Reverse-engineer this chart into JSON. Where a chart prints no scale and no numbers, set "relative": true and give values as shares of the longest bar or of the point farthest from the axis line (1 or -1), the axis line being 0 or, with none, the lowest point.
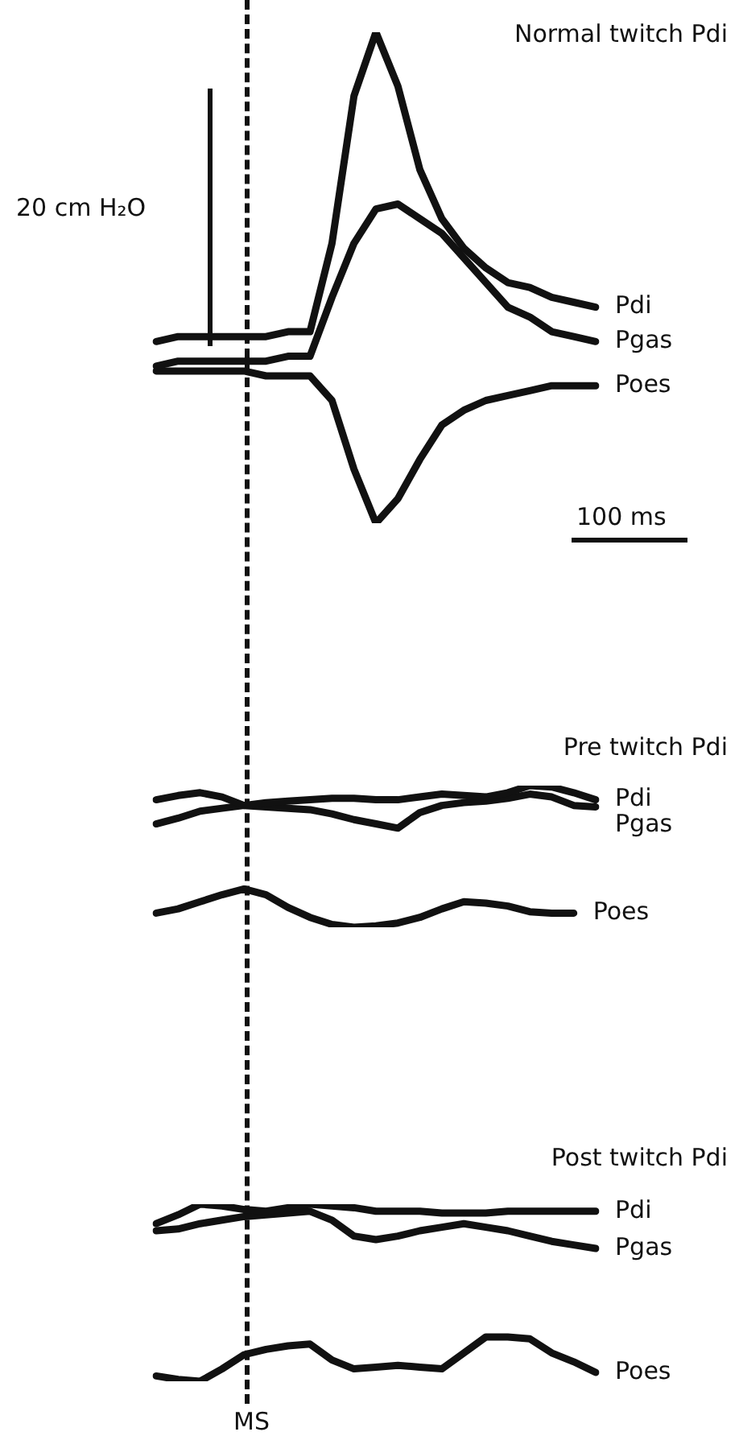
{
  "chart_data": [
    {
      "type": "line",
      "title": "Normal twitch Pdi",
      "relative": true,
      "legend": false,
      "marker": "none",
      "line_style": "solid",
      "annotations": [
        "20 cm H₂O",
        "100 ms"
      ],
      "categories": [
        null,
        null,
        null,
        null,
        null,
        null,
        null,
        null,
        null,
        null,
        null,
        null,
        null,
        null,
        null,
        null,
        null,
        null,
        null,
        null,
        null
      ],
      "series": [
        {
          "name": "Pdi",
          "color": "#111111",
          "values": [
            0.37,
            0.38,
            0.38,
            0.38,
            0.38,
            0.38,
            0.39,
            0.39,
            0.57,
            0.87,
            1,
            0.89,
            0.72,
            0.62,
            0.56,
            0.52,
            0.49,
            0.48,
            0.46,
            0.45,
            0.44
          ]
        },
        {
          "name": "Pgas",
          "color": "#111111",
          "values": [
            0.32,
            0.33,
            0.33,
            0.33,
            0.33,
            0.33,
            0.34,
            0.34,
            0.46,
            0.57,
            0.64,
            0.65,
            0.62,
            0.59,
            0.54,
            0.49,
            0.44,
            0.42,
            0.39,
            0.38,
            0.37
          ]
        },
        {
          "name": "Poes",
          "color": "#111111",
          "values": [
            0.31,
            0.31,
            0.31,
            0.31,
            0.31,
            0.3,
            0.3,
            0.3,
            0.25,
            0.11,
            0,
            0.05,
            0.13,
            0.2,
            0.23,
            0.25,
            0.26,
            0.27,
            0.28,
            0.28,
            0.28
          ]
        }
      ]
    },
    {
      "type": "line",
      "title": "Pre twitch Pdi",
      "relative": true,
      "legend": false,
      "marker": "none",
      "line_style": "solid",
      "categories": [
        null,
        null,
        null,
        null,
        null,
        null,
        null,
        null,
        null,
        null,
        null,
        null,
        null,
        null,
        null,
        null,
        null,
        null,
        null,
        null,
        null
      ],
      "series": [
        {
          "name": "Pdi",
          "color": "#111111",
          "values": [
            0.9,
            0.93,
            0.95,
            0.92,
            0.86,
            0.88,
            0.89,
            0.9,
            0.91,
            0.91,
            0.9,
            0.9,
            0.92,
            0.94,
            0.93,
            0.92,
            0.95,
            1,
            0.99,
            0.95,
            0.9
          ]
        },
        {
          "name": "Pgas",
          "color": "#111111",
          "values": [
            0.73,
            0.77,
            0.82,
            0.84,
            0.86,
            0.85,
            0.84,
            0.83,
            0.8,
            0.76,
            0.73,
            0.7,
            0.81,
            0.86,
            0.88,
            0.89,
            0.91,
            0.94,
            0.92,
            0.86,
            0.85
          ]
        },
        {
          "name": "Poes",
          "color": "#111111",
          "values": [
            0.1,
            0.13,
            0.18,
            0.23,
            0.27,
            0.23,
            0.14,
            0.07,
            0.02,
            0,
            0.01,
            0.03,
            0.07,
            0.13,
            0.18,
            0.17,
            0.15,
            0.11,
            0.1,
            0.1,
            null
          ]
        }
      ]
    },
    {
      "type": "line",
      "title": "Post twitch Pdi",
      "relative": true,
      "legend": false,
      "marker": "none",
      "line_style": "solid",
      "annotations": [
        "MS"
      ],
      "categories": [
        null,
        null,
        null,
        null,
        null,
        null,
        null,
        null,
        null,
        null,
        null,
        null,
        null,
        null,
        null,
        null,
        null,
        null,
        null,
        null,
        null
      ],
      "series": [
        {
          "name": "Pdi",
          "color": "#111111",
          "values": [
            0.89,
            0.94,
            1,
            0.99,
            0.97,
            0.96,
            0.98,
            1,
            0.99,
            0.98,
            0.96,
            0.96,
            0.96,
            0.95,
            0.95,
            0.95,
            0.96,
            0.96,
            0.96,
            0.96,
            0.96
          ]
        },
        {
          "name": "Pgas",
          "color": "#111111",
          "values": [
            0.85,
            0.86,
            0.89,
            0.91,
            0.93,
            0.94,
            0.95,
            0.96,
            0.91,
            0.82,
            0.8,
            0.82,
            0.85,
            0.87,
            0.89,
            0.87,
            0.85,
            0.82,
            0.79,
            0.77,
            0.75
          ]
        },
        {
          "name": "Poes",
          "color": "#111111",
          "values": [
            0.03,
            0.01,
            0,
            0.07,
            0.15,
            0.18,
            0.2,
            0.21,
            0.12,
            0.07,
            0.08,
            0.09,
            0.08,
            0.07,
            0.16,
            0.25,
            0.25,
            0.24,
            0.16,
            0.11,
            0.05
          ]
        }
      ]
    }
  ]
}
